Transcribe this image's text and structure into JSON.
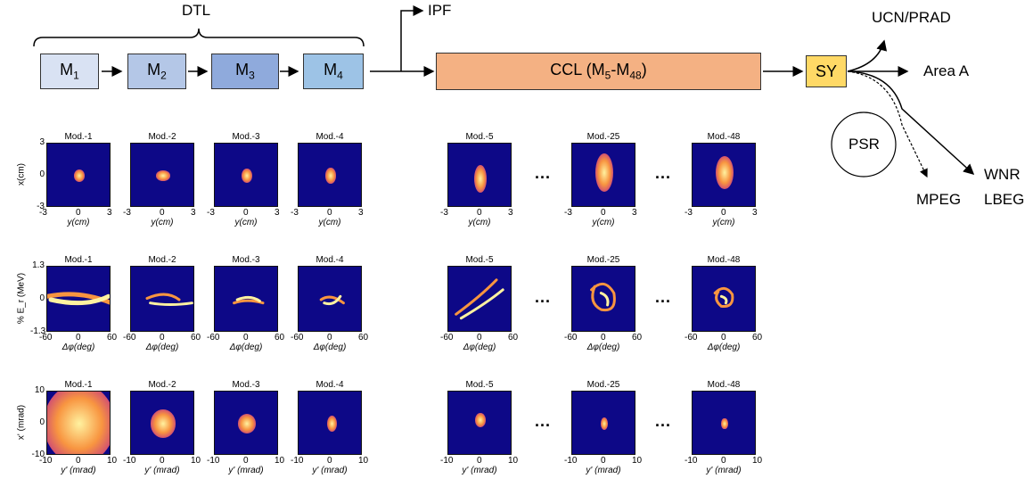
{
  "diagram": {
    "dtl_label": "DTL",
    "modules": [
      {
        "base": "M",
        "sub": "1",
        "color": "#d9e2f3"
      },
      {
        "base": "M",
        "sub": "2",
        "color": "#b4c7e7"
      },
      {
        "base": "M",
        "sub": "3",
        "color": "#8faadc"
      },
      {
        "base": "M",
        "sub": "4",
        "color": "#9dc3e6"
      }
    ],
    "ccl": {
      "text": "CCL (M",
      "sub1": "5",
      "dash": "-M",
      "sub2": "48",
      "close": ")",
      "color": "#f4b183"
    },
    "sy": {
      "label": "SY",
      "color": "#ffd966"
    },
    "ipf": "IPF",
    "ucn": "UCN/PRAD",
    "area_a": "Area A",
    "psr": "PSR",
    "wnr": "WNR",
    "lbeg": "LBEG",
    "mpeg": "MPEG"
  },
  "plots": {
    "row1": {
      "ylabel": "x(cm)",
      "xlabel": "y(cm)",
      "yticks": [
        "3",
        "0",
        "-3"
      ],
      "xticks": [
        "-3",
        "0",
        "3"
      ],
      "titles": [
        "Mod.-1",
        "Mod.-2",
        "Mod.-3",
        "Mod.-4",
        "Mod.-5",
        "Mod.-25",
        "Mod.-48"
      ]
    },
    "row2": {
      "ylabel": "% E_r (MeV)",
      "xlabel": "Δφ(deg)",
      "yticks": [
        "1.3",
        "0",
        "-1.3"
      ],
      "xticks": [
        "-60",
        "0",
        "60"
      ],
      "titles": [
        "Mod.-1",
        "Mod.-2",
        "Mod.-3",
        "Mod.-4",
        "Mod.-5",
        "Mod.-25",
        "Mod.-48"
      ]
    },
    "row3": {
      "ylabel": "x' (mrad)",
      "xlabel": "y' (mrad)",
      "yticks": [
        "10",
        "0",
        "-10"
      ],
      "xticks": [
        "-10",
        "0",
        "10"
      ],
      "titles": [
        "Mod.-1",
        "Mod.-2",
        "Mod.-3",
        "Mod.-4",
        "Mod.-5",
        "Mod.-25",
        "Mod.-48"
      ]
    },
    "ellipsis": "..."
  },
  "colors": {
    "plot_bg": "#0d0887",
    "glow_core": "#fff2a0",
    "glow_mid": "#f89540",
    "glow_edge": "#cc4778",
    "arrow": "#000000"
  }
}
